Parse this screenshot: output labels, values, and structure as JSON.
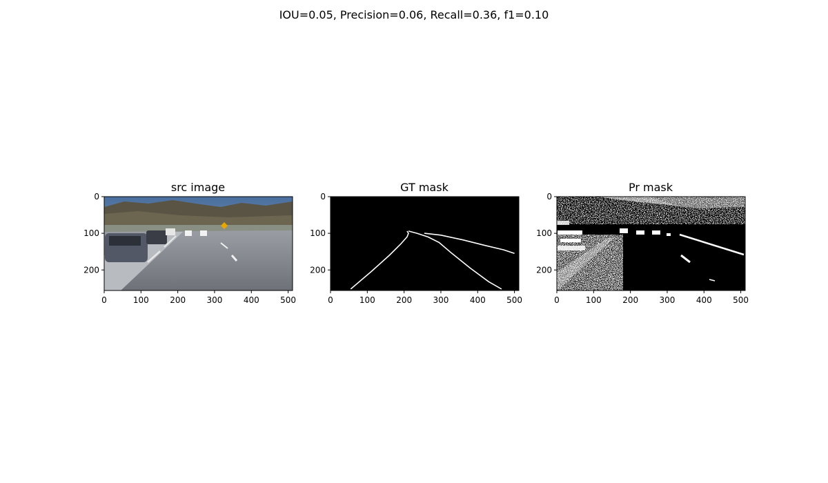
{
  "figure": {
    "suptitle": "IOU=0.05, Precision=0.06, Recall=0.36, f1=0.10"
  },
  "chart_data": [
    {
      "type": "image",
      "title": "src image",
      "xlim": [
        0,
        512
      ],
      "ylim": [
        256,
        0
      ],
      "xticks": [
        0,
        100,
        200,
        300,
        400,
        500
      ],
      "yticks": [
        0,
        100,
        200
      ],
      "content": "road-scene-photo"
    },
    {
      "type": "image",
      "title": "GT mask",
      "xlim": [
        0,
        512
      ],
      "ylim": [
        256,
        0
      ],
      "xticks": [
        0,
        100,
        200,
        300,
        400,
        500
      ],
      "yticks": [
        0,
        100,
        200
      ],
      "content": "binary-lane-mask",
      "lanes": [
        [
          [
            55,
            252
          ],
          [
            110,
            205
          ],
          [
            160,
            160
          ],
          [
            190,
            130
          ],
          [
            208,
            110
          ],
          [
            212,
            100
          ],
          [
            208,
            94
          ]
        ],
        [
          [
            212,
            94
          ],
          [
            235,
            100
          ],
          [
            265,
            110
          ],
          [
            295,
            125
          ],
          [
            330,
            155
          ],
          [
            380,
            195
          ],
          [
            430,
            232
          ],
          [
            465,
            252
          ]
        ],
        [
          [
            255,
            100
          ],
          [
            300,
            105
          ],
          [
            360,
            118
          ],
          [
            420,
            133
          ],
          [
            470,
            145
          ],
          [
            500,
            155
          ]
        ]
      ]
    },
    {
      "type": "image",
      "title": "Pr mask",
      "xlim": [
        0,
        512
      ],
      "ylim": [
        256,
        0
      ],
      "xticks": [
        0,
        100,
        200,
        300,
        400,
        500
      ],
      "yticks": [
        0,
        100,
        200
      ],
      "content": "binary-predicted-mask"
    }
  ]
}
